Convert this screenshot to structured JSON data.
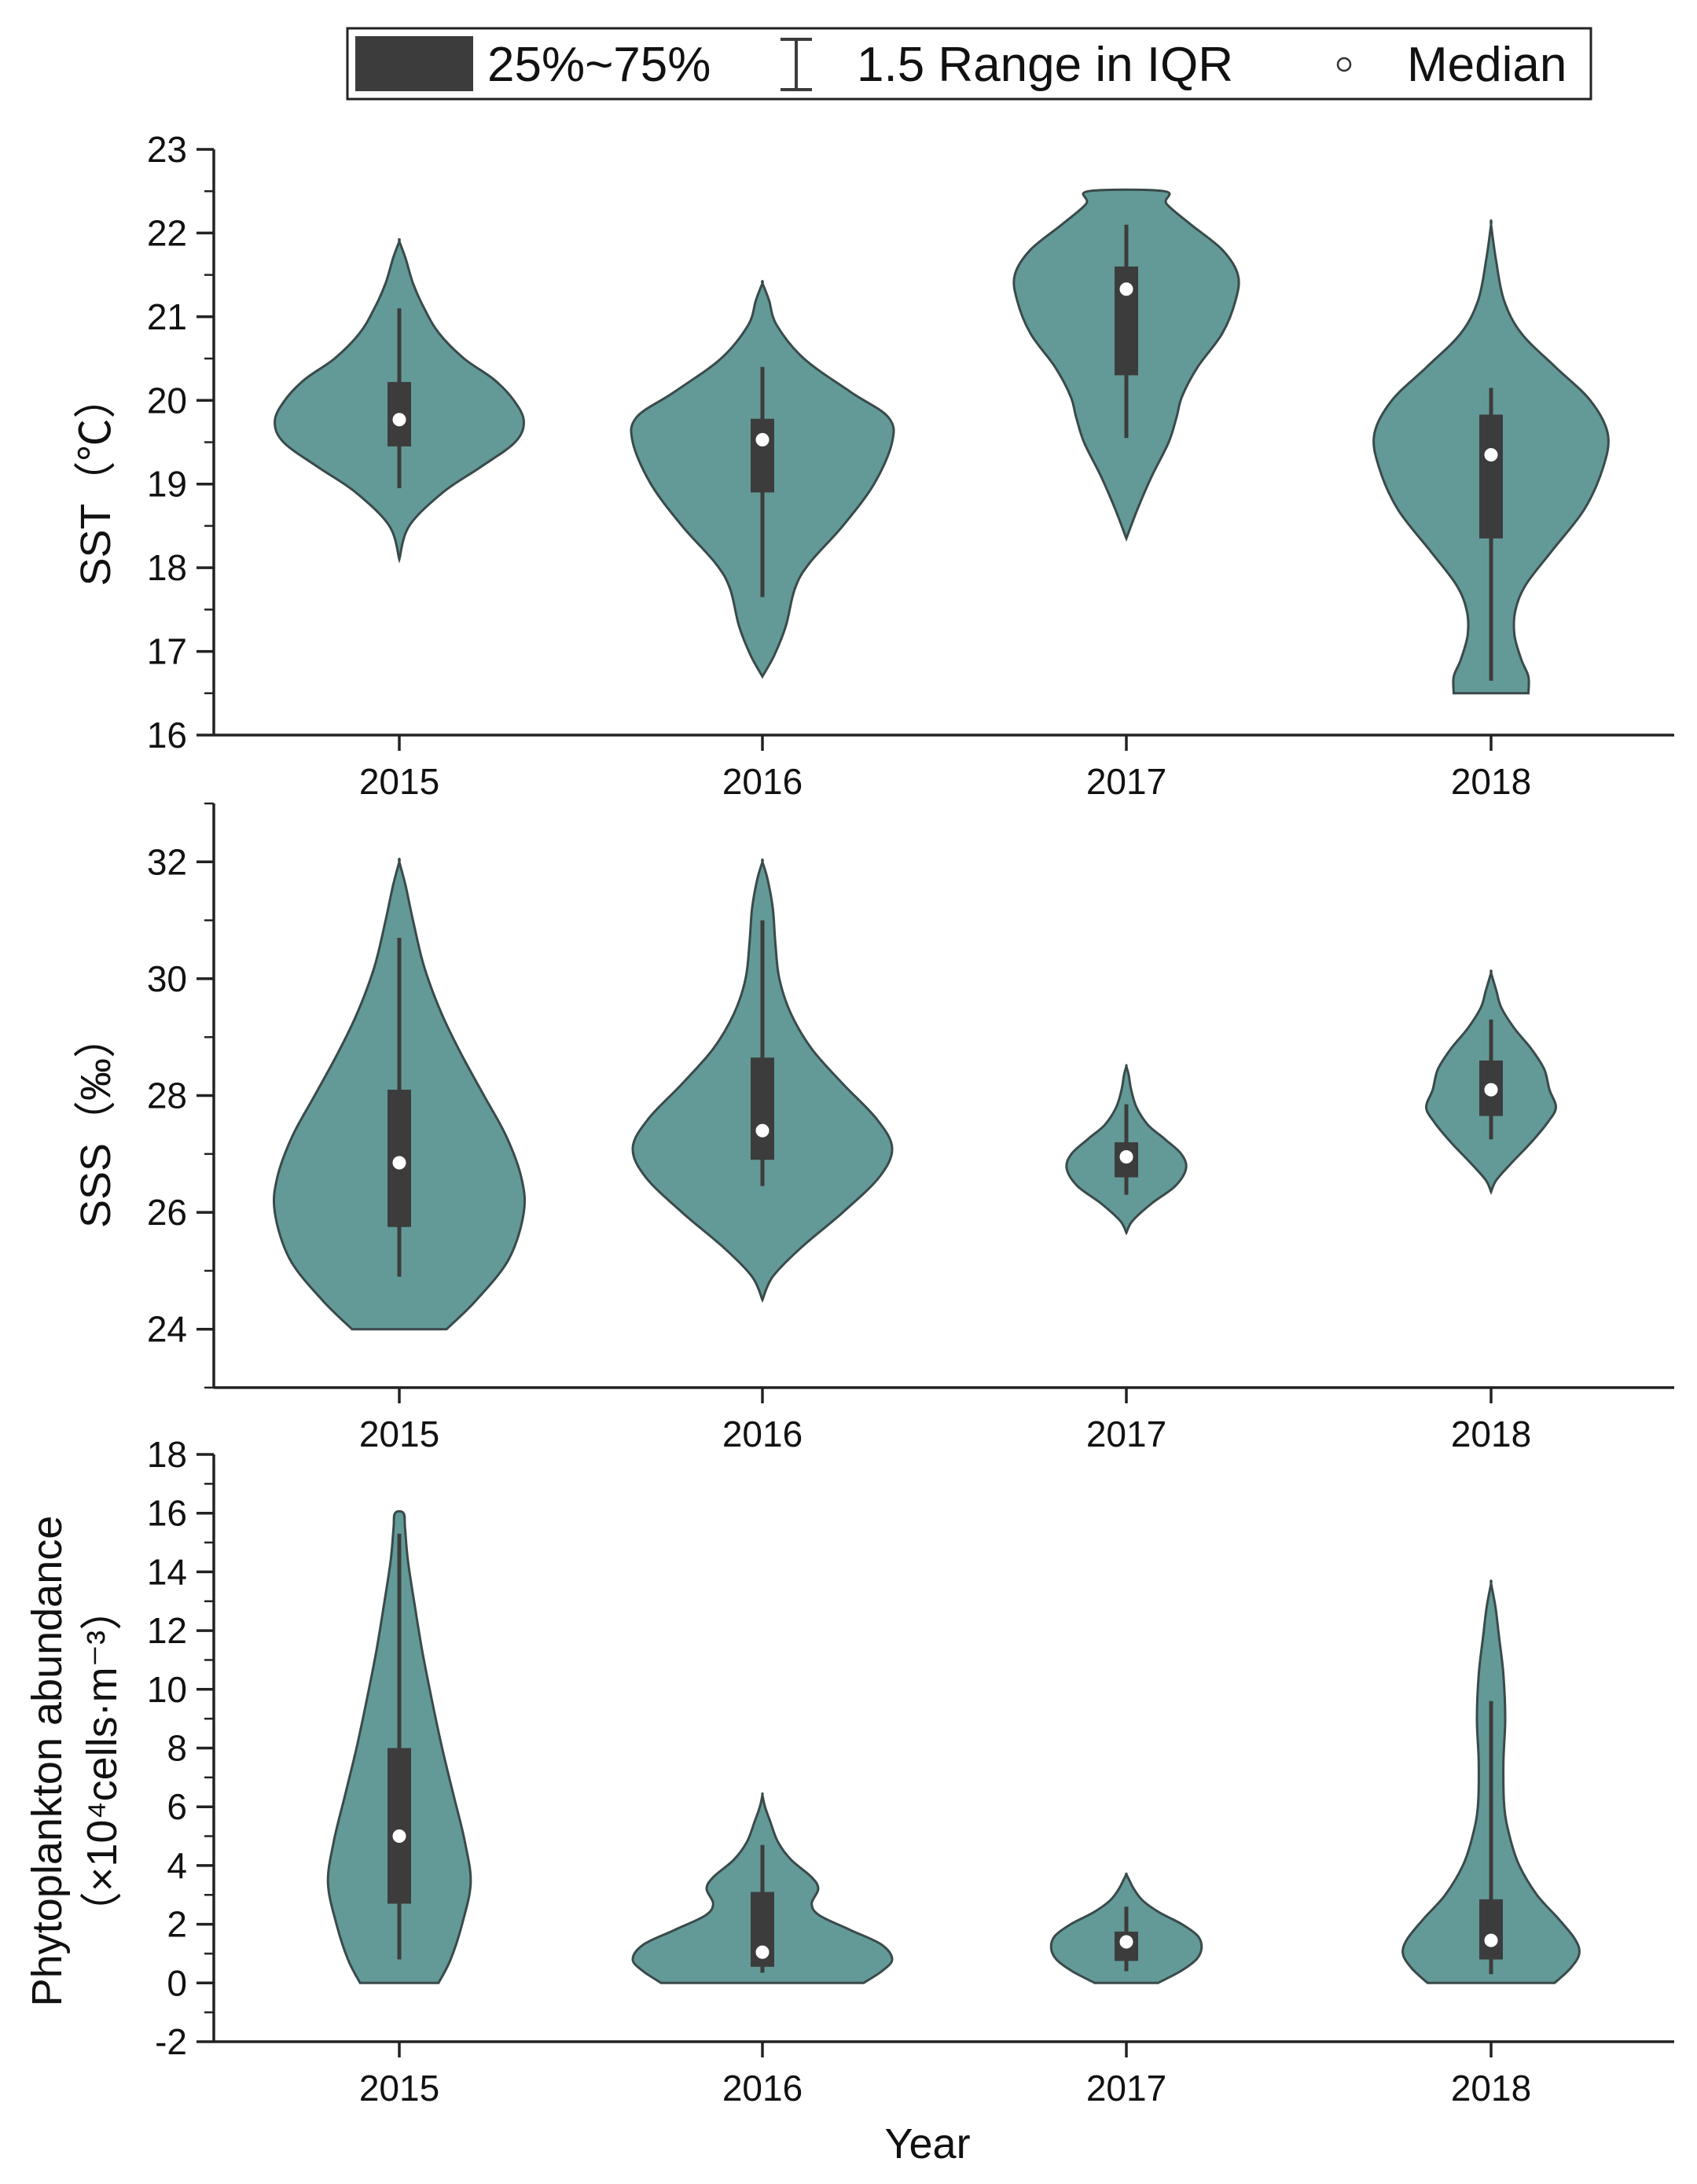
{
  "legend": {
    "box_label": "25%~75%",
    "range_label": "1.5 Range in IQR",
    "median_label": "Median"
  },
  "colors": {
    "violin_fill": "#639a98",
    "violin_stroke": "#3a4a4a",
    "box_fill": "#3c3c3c",
    "median": "#ffffff"
  },
  "x_axis_title": "Year",
  "chart_data": [
    {
      "type": "violin",
      "id": "sst",
      "ylabel": "SST（℃）",
      "ylim": [
        16,
        23
      ],
      "yticks": [
        16,
        17,
        18,
        19,
        20,
        21,
        22,
        23
      ],
      "categories": [
        "2015",
        "2016",
        "2017",
        "2018"
      ],
      "series": [
        {
          "name": "2015",
          "min": 18.95,
          "q1": 19.45,
          "median": 19.77,
          "q3": 20.22,
          "max": 21.1,
          "density": [
            [
              18.1,
              0
            ],
            [
              18.5,
              0.08
            ],
            [
              18.9,
              0.35
            ],
            [
              19.2,
              0.65
            ],
            [
              19.5,
              0.93
            ],
            [
              19.75,
              1.0
            ],
            [
              20.0,
              0.92
            ],
            [
              20.25,
              0.76
            ],
            [
              20.5,
              0.52
            ],
            [
              20.8,
              0.32
            ],
            [
              21.1,
              0.2
            ],
            [
              21.4,
              0.11
            ],
            [
              21.7,
              0.05
            ],
            [
              21.9,
              0
            ]
          ]
        },
        {
          "name": "2016",
          "min": 17.65,
          "q1": 18.9,
          "median": 19.53,
          "q3": 19.78,
          "max": 20.4,
          "density": [
            [
              16.7,
              0
            ],
            [
              16.95,
              0.09
            ],
            [
              17.3,
              0.18
            ],
            [
              17.75,
              0.25
            ],
            [
              18.05,
              0.36
            ],
            [
              18.5,
              0.62
            ],
            [
              19.0,
              0.86
            ],
            [
              19.5,
              1.0
            ],
            [
              19.8,
              0.97
            ],
            [
              20.1,
              0.68
            ],
            [
              20.5,
              0.32
            ],
            [
              20.9,
              0.11
            ],
            [
              21.2,
              0.05
            ],
            [
              21.4,
              0
            ]
          ]
        },
        {
          "name": "2017",
          "min": 19.55,
          "q1": 20.3,
          "median": 21.33,
          "q3": 21.6,
          "max": 22.1,
          "density": [
            [
              18.35,
              0
            ],
            [
              18.7,
              0.1
            ],
            [
              19.1,
              0.23
            ],
            [
              19.5,
              0.38
            ],
            [
              19.8,
              0.45
            ],
            [
              20.05,
              0.5
            ],
            [
              20.4,
              0.64
            ],
            [
              20.8,
              0.86
            ],
            [
              21.2,
              0.98
            ],
            [
              21.5,
              1.0
            ],
            [
              21.8,
              0.86
            ],
            [
              22.1,
              0.58
            ],
            [
              22.35,
              0.36
            ],
            [
              22.5,
              0.34
            ]
          ]
        },
        {
          "name": "2018",
          "min": 16.65,
          "q1": 18.35,
          "median": 19.35,
          "q3": 19.83,
          "max": 20.15,
          "density": [
            [
              16.5,
              0.32
            ],
            [
              16.7,
              0.32
            ],
            [
              16.9,
              0.26
            ],
            [
              17.2,
              0.2
            ],
            [
              17.5,
              0.21
            ],
            [
              17.8,
              0.3
            ],
            [
              18.2,
              0.52
            ],
            [
              18.7,
              0.8
            ],
            [
              19.2,
              0.96
            ],
            [
              19.6,
              1.0
            ],
            [
              20.0,
              0.85
            ],
            [
              20.4,
              0.55
            ],
            [
              20.8,
              0.26
            ],
            [
              21.2,
              0.11
            ],
            [
              21.7,
              0.04
            ],
            [
              22.1,
              0
            ]
          ]
        }
      ]
    },
    {
      "type": "violin",
      "id": "sss",
      "ylabel": "SSS（‰）",
      "ylim": [
        23,
        33
      ],
      "yticks": [
        24,
        26,
        28,
        30,
        32
      ],
      "categories": [
        "2015",
        "2016",
        "2017",
        "2018"
      ],
      "series": [
        {
          "name": "2015",
          "min": 24.9,
          "q1": 25.75,
          "median": 26.85,
          "q3": 28.1,
          "max": 30.7,
          "density": [
            [
              24.0,
              0.38
            ],
            [
              24.5,
              0.62
            ],
            [
              25.2,
              0.88
            ],
            [
              26.0,
              1.0
            ],
            [
              26.6,
              0.98
            ],
            [
              27.3,
              0.86
            ],
            [
              28.0,
              0.68
            ],
            [
              28.7,
              0.5
            ],
            [
              29.4,
              0.34
            ],
            [
              30.2,
              0.2
            ],
            [
              31.0,
              0.11
            ],
            [
              31.6,
              0.05
            ],
            [
              32.0,
              0
            ]
          ]
        },
        {
          "name": "2016",
          "min": 26.45,
          "q1": 26.9,
          "median": 27.4,
          "q3": 28.65,
          "max": 31.0,
          "density": [
            [
              24.5,
              0
            ],
            [
              24.9,
              0.08
            ],
            [
              25.4,
              0.3
            ],
            [
              26.0,
              0.62
            ],
            [
              26.6,
              0.9
            ],
            [
              27.1,
              1.0
            ],
            [
              27.6,
              0.88
            ],
            [
              28.2,
              0.62
            ],
            [
              28.8,
              0.38
            ],
            [
              29.4,
              0.22
            ],
            [
              30.0,
              0.13
            ],
            [
              30.6,
              0.1
            ],
            [
              31.2,
              0.08
            ],
            [
              31.7,
              0.04
            ],
            [
              32.0,
              0
            ]
          ]
        },
        {
          "name": "2017",
          "min": 26.3,
          "q1": 26.6,
          "median": 26.95,
          "q3": 27.2,
          "max": 27.85,
          "density": [
            [
              25.65,
              0
            ],
            [
              25.85,
              0.1
            ],
            [
              26.15,
              0.42
            ],
            [
              26.45,
              0.82
            ],
            [
              26.75,
              1.0
            ],
            [
              27.0,
              0.92
            ],
            [
              27.25,
              0.65
            ],
            [
              27.5,
              0.36
            ],
            [
              27.8,
              0.17
            ],
            [
              28.1,
              0.08
            ],
            [
              28.35,
              0.04
            ],
            [
              28.5,
              0
            ]
          ]
        },
        {
          "name": "2018",
          "min": 27.25,
          "q1": 27.65,
          "median": 28.1,
          "q3": 28.6,
          "max": 29.3,
          "density": [
            [
              26.35,
              0
            ],
            [
              26.55,
              0.08
            ],
            [
              26.85,
              0.32
            ],
            [
              27.2,
              0.62
            ],
            [
              27.55,
              0.88
            ],
            [
              27.8,
              1.0
            ],
            [
              28.1,
              0.9
            ],
            [
              28.45,
              0.82
            ],
            [
              28.8,
              0.62
            ],
            [
              29.15,
              0.36
            ],
            [
              29.5,
              0.16
            ],
            [
              29.8,
              0.08
            ],
            [
              30.1,
              0
            ]
          ]
        }
      ]
    },
    {
      "type": "violin",
      "id": "phyto",
      "ylabel": "Phytoplankton abundance",
      "ylabel2": "（×10⁴cells·m⁻³）",
      "xlabel": "Year",
      "ylim": [
        -2,
        18
      ],
      "yticks": [
        -2,
        0,
        2,
        4,
        6,
        8,
        10,
        12,
        14,
        16,
        18
      ],
      "categories": [
        "2015",
        "2016",
        "2017",
        "2018"
      ],
      "series": [
        {
          "name": "2015",
          "min": 0.8,
          "q1": 2.7,
          "median": 5.0,
          "q3": 8.0,
          "max": 15.3,
          "density": [
            [
              0,
              0.55
            ],
            [
              0.8,
              0.72
            ],
            [
              2.0,
              0.88
            ],
            [
              3.4,
              1.0
            ],
            [
              4.8,
              0.92
            ],
            [
              6.4,
              0.76
            ],
            [
              8.0,
              0.6
            ],
            [
              9.6,
              0.46
            ],
            [
              11.2,
              0.33
            ],
            [
              12.8,
              0.22
            ],
            [
              14.4,
              0.12
            ],
            [
              15.5,
              0.08
            ],
            [
              16.0,
              0.06
            ]
          ]
        },
        {
          "name": "2016",
          "min": 0.35,
          "q1": 0.55,
          "median": 1.05,
          "q3": 3.1,
          "max": 4.7,
          "density": [
            [
              0,
              0.78
            ],
            [
              0.4,
              0.92
            ],
            [
              0.8,
              1.0
            ],
            [
              1.3,
              0.92
            ],
            [
              1.8,
              0.68
            ],
            [
              2.3,
              0.44
            ],
            [
              2.7,
              0.38
            ],
            [
              3.2,
              0.43
            ],
            [
              3.6,
              0.38
            ],
            [
              4.2,
              0.22
            ],
            [
              4.8,
              0.12
            ],
            [
              5.5,
              0.06
            ],
            [
              6.0,
              0.02
            ],
            [
              6.4,
              0
            ]
          ]
        },
        {
          "name": "2017",
          "min": 0.4,
          "q1": 0.75,
          "median": 1.4,
          "q3": 1.75,
          "max": 2.6,
          "density": [
            [
              0,
              0.42
            ],
            [
              0.4,
              0.72
            ],
            [
              0.8,
              0.93
            ],
            [
              1.2,
              1.0
            ],
            [
              1.6,
              0.95
            ],
            [
              2.0,
              0.74
            ],
            [
              2.4,
              0.44
            ],
            [
              2.8,
              0.22
            ],
            [
              3.2,
              0.1
            ],
            [
              3.5,
              0.04
            ],
            [
              3.7,
              0
            ]
          ]
        },
        {
          "name": "2018",
          "min": 0.3,
          "q1": 0.8,
          "median": 1.45,
          "q3": 2.85,
          "max": 9.6,
          "density": [
            [
              0,
              0.72
            ],
            [
              0.5,
              0.9
            ],
            [
              1.0,
              1.0
            ],
            [
              1.5,
              0.95
            ],
            [
              2.2,
              0.76
            ],
            [
              3.0,
              0.52
            ],
            [
              4.0,
              0.32
            ],
            [
              5.0,
              0.21
            ],
            [
              6.0,
              0.15
            ],
            [
              7.5,
              0.14
            ],
            [
              9.0,
              0.16
            ],
            [
              10.5,
              0.14
            ],
            [
              11.8,
              0.09
            ],
            [
              12.8,
              0.05
            ],
            [
              13.6,
              0
            ]
          ]
        }
      ]
    }
  ]
}
